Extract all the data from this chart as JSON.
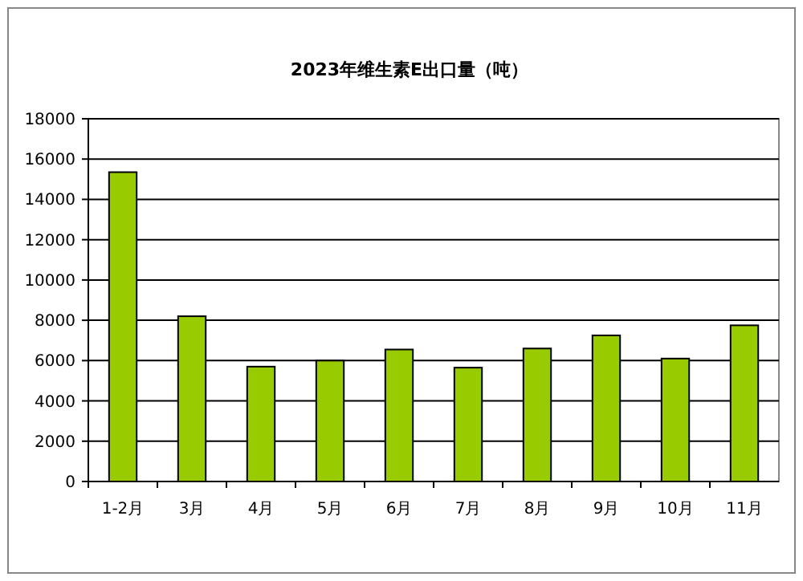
{
  "chart_data": {
    "type": "bar",
    "title": "2023年维生素E出口量（吨）",
    "categories": [
      "1-2月",
      "3月",
      "4月",
      "5月",
      "6月",
      "7月",
      "8月",
      "9月",
      "10月",
      "11月"
    ],
    "values": [
      15350,
      8200,
      5700,
      6000,
      6550,
      5650,
      6600,
      7250,
      6100,
      7750
    ],
    "color": "#99cc00",
    "ylim": [
      0,
      18000
    ],
    "yticks": [
      0,
      2000,
      4000,
      6000,
      8000,
      10000,
      12000,
      14000,
      16000,
      18000
    ],
    "grid": "y"
  }
}
